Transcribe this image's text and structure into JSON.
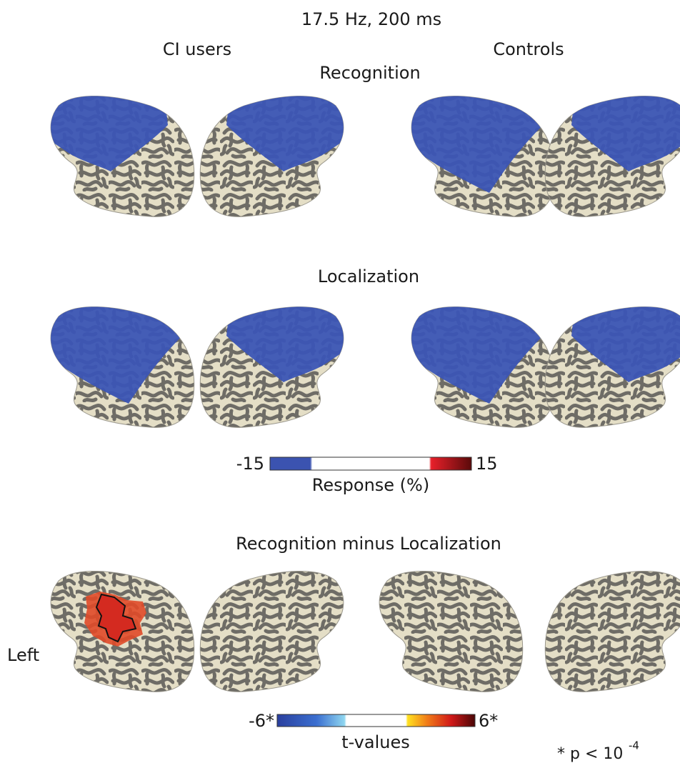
{
  "header": {
    "title": "17.5 Hz,  200 ms"
  },
  "columns": [
    "CI users",
    "Controls"
  ],
  "rows": [
    {
      "label": "Recognition"
    },
    {
      "label": "Localization"
    }
  ],
  "response_colorbar": {
    "min": "-15",
    "max": "15",
    "label": "Response (%)"
  },
  "contrast": {
    "title": "Recognition minus Localization",
    "side_label": "Left"
  },
  "t_colorbar": {
    "min": "-6*",
    "max": "6*",
    "label": "t-values"
  },
  "footnote": {
    "text": "* p < 10",
    "exponent": "-4"
  }
}
